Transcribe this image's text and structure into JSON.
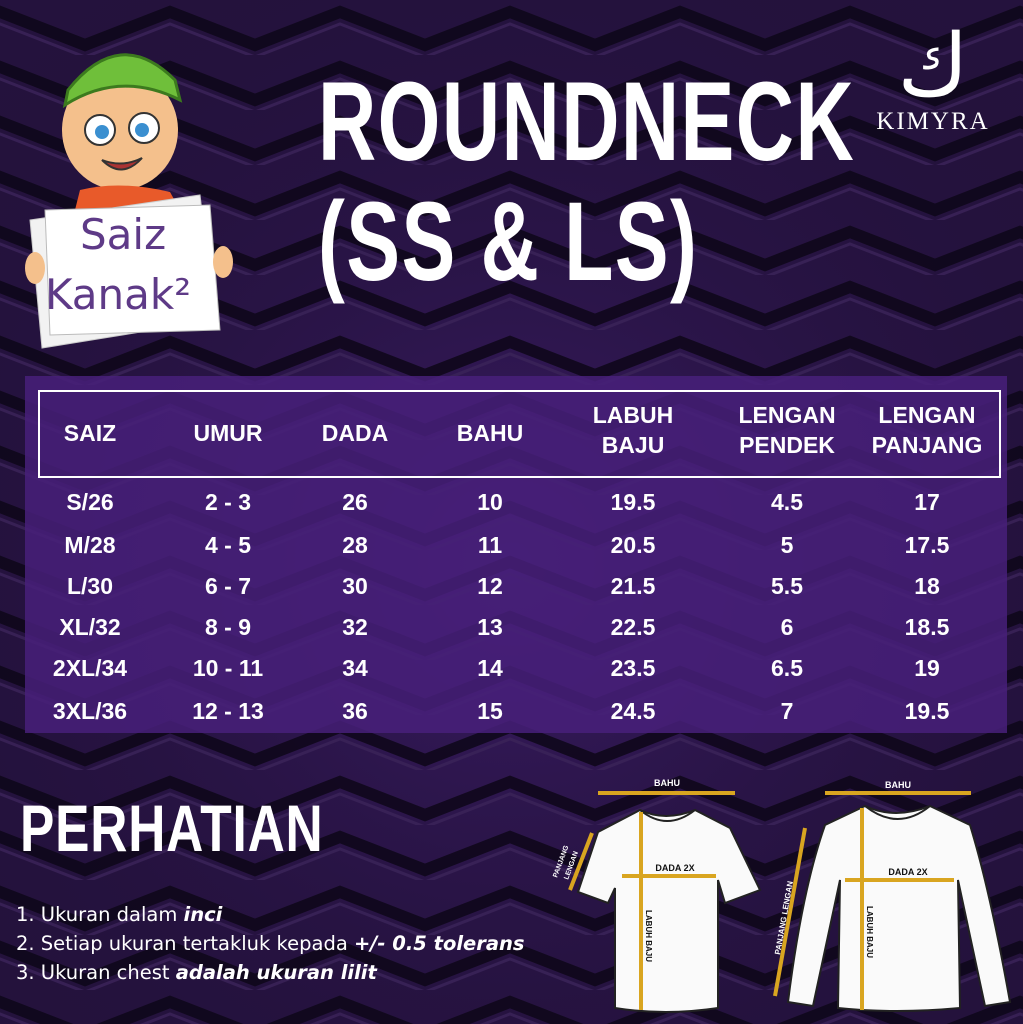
{
  "title_line1": "ROUNDNECK",
  "title_line2": "(SS & LS)",
  "logo": {
    "glyph": "ك",
    "name": "KIMYRA"
  },
  "badge": {
    "line1": "Saiz",
    "line2": "Kanak²"
  },
  "table": {
    "headers": [
      {
        "l1": "SAIZ",
        "l2": ""
      },
      {
        "l1": "UMUR",
        "l2": ""
      },
      {
        "l1": "DADA",
        "l2": ""
      },
      {
        "l1": "BAHU",
        "l2": ""
      },
      {
        "l1": "LABUH",
        "l2": "BAJU"
      },
      {
        "l1": "LENGAN",
        "l2": "PENDEK"
      },
      {
        "l1": "LENGAN",
        "l2": "PANJANG"
      }
    ],
    "rows": [
      [
        "S/26",
        "2 - 3",
        "26",
        "10",
        "19.5",
        "4.5",
        "17"
      ],
      [
        "M/28",
        "4 - 5",
        "28",
        "11",
        "20.5",
        "5",
        "17.5"
      ],
      [
        "L/30",
        "6 - 7",
        "30",
        "12",
        "21.5",
        "5.5",
        "18"
      ],
      [
        "XL/32",
        "8 - 9",
        "32",
        "13",
        "22.5",
        "6",
        "18.5"
      ],
      [
        "2XL/34",
        "10 - 11",
        "34",
        "14",
        "23.5",
        "6.5",
        "19"
      ],
      [
        "3XL/36",
        "12 - 13",
        "36",
        "15",
        "24.5",
        "7",
        "19.5"
      ]
    ]
  },
  "notice": {
    "heading": "PERHATIAN",
    "items": [
      {
        "plain": "1. Ukuran dalam ",
        "bold": "inci"
      },
      {
        "plain": "2. Setiap ukuran tertakluk kepada ",
        "bold": "+/- 0.5 tolerans"
      },
      {
        "plain": "3. Ukuran chest ",
        "bold": "adalah ukuran lilit"
      }
    ]
  },
  "diagram": {
    "bahu": "BAHU",
    "dada": "DADA 2X",
    "labuh": "LABUH BAJU",
    "ss_sleeve_l1": "PANJANG",
    "ss_sleeve_l2": "LENGAN",
    "ls_sleeve": "PANJANG LENGAN"
  },
  "colors": {
    "background": "#1e0f33",
    "panel": "#48207a",
    "measure_line": "#d9a520",
    "sign_text": "#5e3a87"
  }
}
